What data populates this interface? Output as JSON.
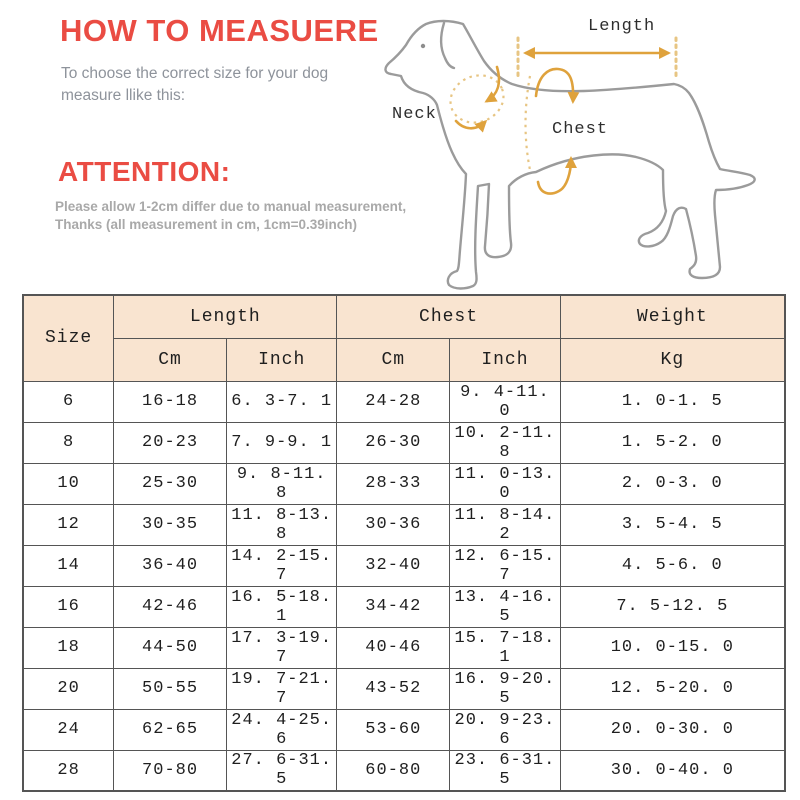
{
  "header": {
    "title": "HOW TO MEASUERE",
    "subtitle_line1": "To choose the correct size for your dog",
    "subtitle_line2": "measure llike this:"
  },
  "attention": {
    "heading": "ATTENTION:",
    "note_line1": "Please allow 1-2cm differ due to manual measurement,",
    "note_line2": "Thanks (all measurement in cm, 1cm=0.39inch)"
  },
  "diagram": {
    "length_label": "Length",
    "neck_label": "Neck",
    "chest_label": "Chest"
  },
  "size_table": {
    "group_headers": {
      "size": "Size",
      "length": "Length",
      "chest": "Chest",
      "weight": "Weight"
    },
    "sub_headers": {
      "length_cm": "Cm",
      "length_inch": "Inch",
      "chest_cm": "Cm",
      "chest_inch": "Inch",
      "weight_kg": "Kg"
    },
    "rows": [
      [
        "6",
        "16-18",
        "6. 3-7. 1",
        "24-28",
        "9. 4-11. 0",
        "1. 0-1. 5"
      ],
      [
        "8",
        "20-23",
        "7. 9-9. 1",
        "26-30",
        "10. 2-11. 8",
        "1. 5-2. 0"
      ],
      [
        "10",
        "25-30",
        "9. 8-11. 8",
        "28-33",
        "11. 0-13. 0",
        "2. 0-3. 0"
      ],
      [
        "12",
        "30-35",
        "11. 8-13. 8",
        "30-36",
        "11. 8-14. 2",
        "3. 5-4. 5"
      ],
      [
        "14",
        "36-40",
        "14. 2-15. 7",
        "32-40",
        "12. 6-15. 7",
        "4. 5-6. 0"
      ],
      [
        "16",
        "42-46",
        "16. 5-18. 1",
        "34-42",
        "13. 4-16. 5",
        "7. 5-12. 5"
      ],
      [
        "18",
        "44-50",
        "17. 3-19. 7",
        "40-46",
        "15. 7-18. 1",
        "10. 0-15. 0"
      ],
      [
        "20",
        "50-55",
        "19. 7-21. 7",
        "43-52",
        "16. 9-20. 5",
        "12. 5-20. 0"
      ],
      [
        "24",
        "62-65",
        "24. 4-25. 6",
        "53-60",
        "20. 9-23. 6",
        "20. 0-30. 0"
      ],
      [
        "28",
        "70-80",
        "27. 6-31. 5",
        "60-80",
        "23. 6-31. 5",
        "30. 0-40. 0"
      ]
    ]
  },
  "colors": {
    "accent_red": "#ea4c43",
    "subtitle_gray": "#8e939b",
    "note_gray": "#a9a9a9",
    "table_header_bg": "#f9e4d0",
    "table_border": "#555555",
    "table_text": "#1f1f1f",
    "dog_outline_gray": "#9b9b9b",
    "arrow_orange": "#dfa23c",
    "dash_sand": "#e7c583",
    "label_dark": "#2e2e2e"
  }
}
